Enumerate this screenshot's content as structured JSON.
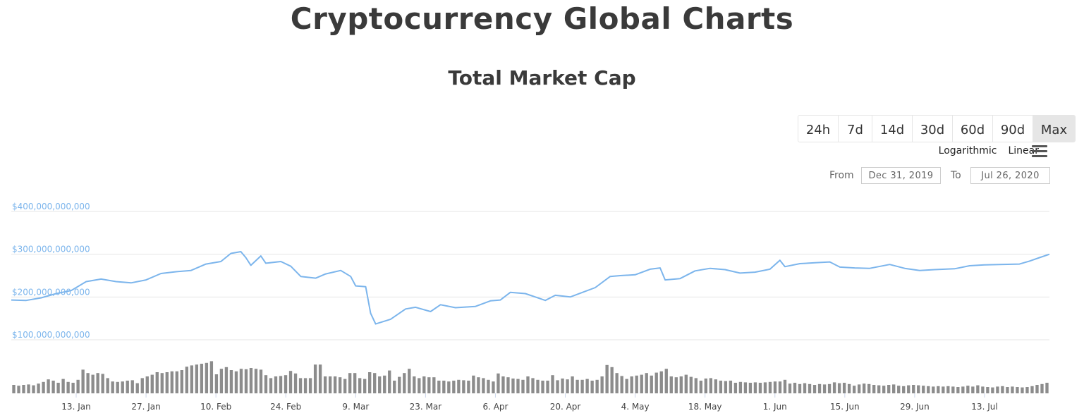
{
  "page": {
    "title": "Cryptocurrency Global Charts"
  },
  "controls": {
    "ranges": [
      "24h",
      "7d",
      "14d",
      "30d",
      "60d",
      "90d",
      "Max"
    ],
    "active_range": "Max",
    "scale_options": [
      "Logarithmic",
      "Linear"
    ],
    "from_label": "From",
    "to_label": "To",
    "from_value": "Dec 31, 2019",
    "to_value": "Jul 26, 2020",
    "menu_icon": "hamburger-menu-icon"
  },
  "colors": {
    "line": "#7cb5ec",
    "volume_bars": "#8c8c8c",
    "grid": "#e6e6e6",
    "axis_labels": "#7cb5ec"
  },
  "chart_data": {
    "type": "line",
    "title": "Total Market Cap",
    "y_tick_labels": [
      "$100,000,000,000",
      "$200,000,000,000",
      "$300,000,000,000",
      "$400,000,000,000"
    ],
    "y_ticks": [
      100000000000,
      200000000000,
      300000000000,
      400000000000
    ],
    "ylim": [
      100000000000,
      400000000000
    ],
    "x_tick_labels": [
      "13. Jan",
      "27. Jan",
      "10. Feb",
      "24. Feb",
      "9. Mar",
      "23. Mar",
      "6. Apr",
      "20. Apr",
      "4. May",
      "18. May",
      "1. Jun",
      "15. Jun",
      "29. Jun",
      "13. Jul"
    ],
    "x_tick_dates": [
      "2020-01-13",
      "2020-01-27",
      "2020-02-10",
      "2020-02-24",
      "2020-03-09",
      "2020-03-23",
      "2020-04-06",
      "2020-04-20",
      "2020-05-04",
      "2020-05-18",
      "2020-06-01",
      "2020-06-15",
      "2020-06-29",
      "2020-07-13"
    ],
    "grid": true,
    "legend": "none",
    "market_cap_series": {
      "name": "",
      "points": [
        [
          "2019-12-31",
          193000000000
        ],
        [
          "2020-01-03",
          192000000000
        ],
        [
          "2020-01-06",
          198000000000
        ],
        [
          "2020-01-09",
          208000000000
        ],
        [
          "2020-01-12",
          215000000000
        ],
        [
          "2020-01-15",
          236000000000
        ],
        [
          "2020-01-18",
          242000000000
        ],
        [
          "2020-01-21",
          236000000000
        ],
        [
          "2020-01-24",
          233000000000
        ],
        [
          "2020-01-27",
          240000000000
        ],
        [
          "2020-01-30",
          255000000000
        ],
        [
          "2020-02-02",
          259000000000
        ],
        [
          "2020-02-05",
          262000000000
        ],
        [
          "2020-02-08",
          277000000000
        ],
        [
          "2020-02-11",
          283000000000
        ],
        [
          "2020-02-13",
          302000000000
        ],
        [
          "2020-02-15",
          306000000000
        ],
        [
          "2020-02-16",
          292000000000
        ],
        [
          "2020-02-17",
          274000000000
        ],
        [
          "2020-02-19",
          296000000000
        ],
        [
          "2020-02-20",
          279000000000
        ],
        [
          "2020-02-23",
          283000000000
        ],
        [
          "2020-02-25",
          272000000000
        ],
        [
          "2020-02-27",
          248000000000
        ],
        [
          "2020-03-01",
          244000000000
        ],
        [
          "2020-03-03",
          254000000000
        ],
        [
          "2020-03-06",
          262000000000
        ],
        [
          "2020-03-08",
          248000000000
        ],
        [
          "2020-03-09",
          226000000000
        ],
        [
          "2020-03-11",
          224000000000
        ],
        [
          "2020-03-12",
          162000000000
        ],
        [
          "2020-03-13",
          137000000000
        ],
        [
          "2020-03-16",
          148000000000
        ],
        [
          "2020-03-19",
          172000000000
        ],
        [
          "2020-03-21",
          176000000000
        ],
        [
          "2020-03-24",
          166000000000
        ],
        [
          "2020-03-26",
          182000000000
        ],
        [
          "2020-03-29",
          175000000000
        ],
        [
          "2020-04-02",
          178000000000
        ],
        [
          "2020-04-05",
          191000000000
        ],
        [
          "2020-04-07",
          193000000000
        ],
        [
          "2020-04-09",
          211000000000
        ],
        [
          "2020-04-12",
          208000000000
        ],
        [
          "2020-04-16",
          192000000000
        ],
        [
          "2020-04-18",
          204000000000
        ],
        [
          "2020-04-21",
          200000000000
        ],
        [
          "2020-04-23",
          209000000000
        ],
        [
          "2020-04-26",
          222000000000
        ],
        [
          "2020-04-29",
          248000000000
        ],
        [
          "2020-05-01",
          250000000000
        ],
        [
          "2020-05-04",
          252000000000
        ],
        [
          "2020-05-07",
          265000000000
        ],
        [
          "2020-05-09",
          268000000000
        ],
        [
          "2020-05-10",
          240000000000
        ],
        [
          "2020-05-13",
          243000000000
        ],
        [
          "2020-05-16",
          261000000000
        ],
        [
          "2020-05-19",
          267000000000
        ],
        [
          "2020-05-22",
          264000000000
        ],
        [
          "2020-05-25",
          256000000000
        ],
        [
          "2020-05-28",
          258000000000
        ],
        [
          "2020-05-31",
          265000000000
        ],
        [
          "2020-06-02",
          286000000000
        ],
        [
          "2020-06-03",
          271000000000
        ],
        [
          "2020-06-06",
          278000000000
        ],
        [
          "2020-06-09",
          280000000000
        ],
        [
          "2020-06-12",
          282000000000
        ],
        [
          "2020-06-14",
          270000000000
        ],
        [
          "2020-06-17",
          268000000000
        ],
        [
          "2020-06-20",
          267000000000
        ],
        [
          "2020-06-24",
          276000000000
        ],
        [
          "2020-06-27",
          267000000000
        ],
        [
          "2020-06-30",
          262000000000
        ],
        [
          "2020-07-03",
          264000000000
        ],
        [
          "2020-07-07",
          266000000000
        ],
        [
          "2020-07-10",
          273000000000
        ],
        [
          "2020-07-13",
          275000000000
        ],
        [
          "2020-07-16",
          276000000000
        ],
        [
          "2020-07-20",
          277000000000
        ],
        [
          "2020-07-22",
          284000000000
        ],
        [
          "2020-07-24",
          292000000000
        ],
        [
          "2020-07-26",
          300000000000
        ]
      ]
    },
    "volume_series": {
      "name": "",
      "note_units": "relative volume (unlabeled axis)",
      "values": [
        0.2,
        0.18,
        0.2,
        0.21,
        0.19,
        0.23,
        0.27,
        0.33,
        0.3,
        0.25,
        0.34,
        0.27,
        0.25,
        0.32,
        0.56,
        0.48,
        0.44,
        0.48,
        0.46,
        0.36,
        0.28,
        0.27,
        0.28,
        0.3,
        0.31,
        0.24,
        0.36,
        0.4,
        0.44,
        0.5,
        0.48,
        0.5,
        0.52,
        0.52,
        0.55,
        0.63,
        0.66,
        0.68,
        0.7,
        0.72,
        0.76,
        0.45,
        0.58,
        0.62,
        0.55,
        0.52,
        0.58,
        0.57,
        0.6,
        0.58,
        0.56,
        0.43,
        0.36,
        0.4,
        0.41,
        0.43,
        0.53,
        0.47,
        0.36,
        0.36,
        0.36,
        0.68,
        0.68,
        0.4,
        0.4,
        0.4,
        0.38,
        0.34,
        0.48,
        0.48,
        0.36,
        0.34,
        0.5,
        0.48,
        0.4,
        0.42,
        0.54,
        0.3,
        0.39,
        0.48,
        0.58,
        0.4,
        0.36,
        0.4,
        0.38,
        0.38,
        0.3,
        0.3,
        0.28,
        0.3,
        0.32,
        0.31,
        0.3,
        0.42,
        0.38,
        0.36,
        0.32,
        0.28,
        0.47,
        0.4,
        0.38,
        0.35,
        0.34,
        0.32,
        0.4,
        0.36,
        0.32,
        0.3,
        0.3,
        0.43,
        0.31,
        0.35,
        0.33,
        0.4,
        0.32,
        0.32,
        0.34,
        0.3,
        0.32,
        0.4,
        0.67,
        0.62,
        0.48,
        0.41,
        0.34,
        0.4,
        0.42,
        0.44,
        0.48,
        0.42,
        0.49,
        0.52,
        0.58,
        0.4,
        0.38,
        0.4,
        0.44,
        0.39,
        0.36,
        0.3,
        0.35,
        0.36,
        0.33,
        0.3,
        0.29,
        0.3,
        0.25,
        0.27,
        0.26,
        0.25,
        0.26,
        0.25,
        0.26,
        0.27,
        0.28,
        0.28,
        0.32,
        0.23,
        0.25,
        0.22,
        0.24,
        0.22,
        0.2,
        0.22,
        0.21,
        0.22,
        0.26,
        0.24,
        0.25,
        0.22,
        0.18,
        0.21,
        0.23,
        0.22,
        0.2,
        0.19,
        0.18,
        0.2,
        0.21,
        0.18,
        0.17,
        0.19,
        0.2,
        0.19,
        0.18,
        0.17,
        0.16,
        0.17,
        0.16,
        0.17,
        0.16,
        0.15,
        0.16,
        0.18,
        0.16,
        0.19,
        0.16,
        0.15,
        0.14,
        0.16,
        0.17,
        0.15,
        0.16,
        0.15,
        0.14,
        0.15,
        0.17,
        0.2,
        0.22,
        0.25
      ]
    }
  }
}
